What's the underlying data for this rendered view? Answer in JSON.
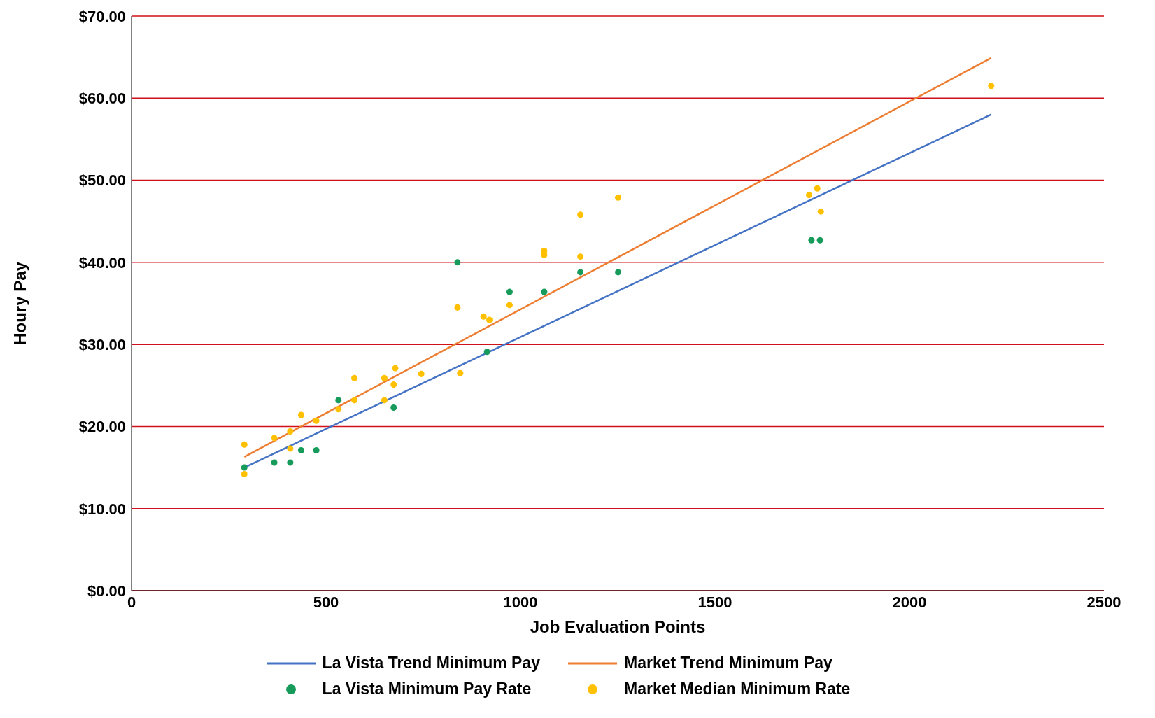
{
  "chart_data": {
    "type": "scatter",
    "xlabel": "Job Evaluation Points",
    "ylabel": "Houry Pay",
    "xlim": [
      0,
      2500
    ],
    "xticks": [
      0,
      500,
      1000,
      1500,
      2000,
      2500
    ],
    "ylim": [
      0,
      70
    ],
    "yticks": [
      {
        "value": 0,
        "label": "$0.00"
      },
      {
        "value": 10,
        "label": "$10.00"
      },
      {
        "value": 20,
        "label": "$20.00"
      },
      {
        "value": 30,
        "label": "$30.00"
      },
      {
        "value": 40,
        "label": "$40.00"
      },
      {
        "value": 50,
        "label": "$50.00"
      },
      {
        "value": 60,
        "label": "$60.00"
      },
      {
        "value": 70,
        "label": "$70.00"
      }
    ],
    "grid": "y",
    "legend": "bottom",
    "marker": "circle",
    "series": [
      {
        "name": "La Vista Trend Minimum Pay",
        "type": "line",
        "marker": "none",
        "color": "#4472c4",
        "x": [
          290,
          2210
        ],
        "values": [
          15.0,
          58.0
        ]
      },
      {
        "name": "Market Trend Minimum Pay",
        "type": "line",
        "marker": "none",
        "color": "#ed7d31",
        "x": [
          290,
          2210
        ],
        "values": [
          16.3,
          64.9
        ]
      },
      {
        "name": "La Vista Minimum Pay Rate",
        "color": "#169b5a",
        "x": [
          290,
          367,
          408,
          436,
          475,
          532,
          674,
          838,
          914,
          972,
          1061,
          1154,
          1251,
          1748,
          1770
        ],
        "values": [
          15.0,
          15.6,
          15.6,
          17.1,
          17.1,
          23.2,
          22.3,
          40.0,
          29.1,
          36.4,
          36.4,
          38.8,
          38.8,
          42.7,
          42.7
        ]
      },
      {
        "name": "Market Median Minimum Rate",
        "color": "#ffc000",
        "x": [
          290,
          290,
          367,
          408,
          408,
          436,
          475,
          532,
          573,
          573,
          650,
          650,
          674,
          678,
          745,
          838,
          845,
          905,
          920,
          972,
          1061,
          1061,
          1154,
          1154,
          1251,
          1742,
          1763,
          1772,
          2210
        ],
        "values": [
          17.8,
          14.2,
          18.6,
          19.4,
          17.3,
          21.4,
          20.7,
          22.1,
          25.9,
          23.2,
          25.9,
          23.2,
          25.1,
          27.1,
          26.4,
          34.5,
          26.5,
          33.4,
          33.0,
          34.8,
          41.4,
          40.9,
          45.8,
          40.7,
          47.9,
          48.2,
          49.0,
          46.2,
          61.5
        ]
      }
    ]
  }
}
